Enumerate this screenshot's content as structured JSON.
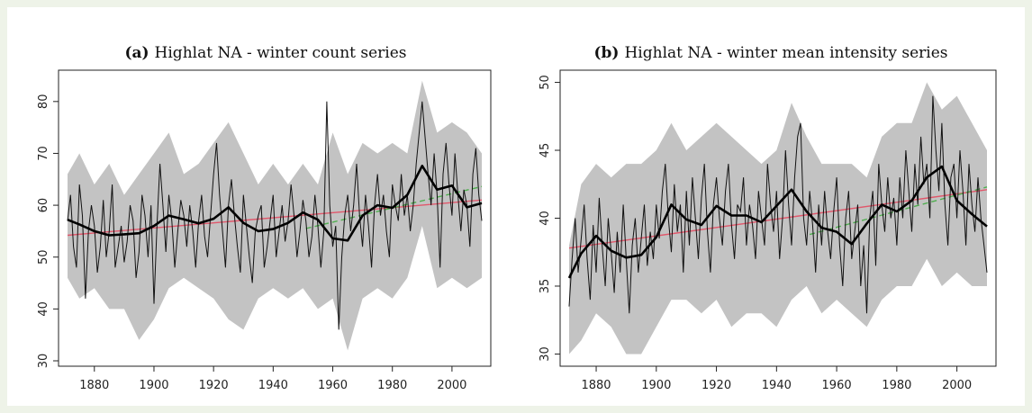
{
  "chart_data": [
    {
      "type": "line",
      "panel": "(a)",
      "title": "Highlat NA - winter count series",
      "xlim": [
        1871,
        2010
      ],
      "ylim": [
        30,
        85
      ],
      "xticks": [
        1880,
        1900,
        1920,
        1940,
        1960,
        1980,
        2000
      ],
      "yticks": [
        30,
        40,
        50,
        60,
        70,
        80
      ],
      "series": [
        {
          "role": "annual",
          "color": "#111111",
          "x": [
            1871,
            1872,
            1873,
            1874,
            1875,
            1876,
            1877,
            1878,
            1879,
            1880,
            1881,
            1882,
            1883,
            1884,
            1885,
            1886,
            1887,
            1888,
            1889,
            1890,
            1891,
            1892,
            1893,
            1894,
            1895,
            1896,
            1897,
            1898,
            1899,
            1900,
            1901,
            1902,
            1903,
            1904,
            1905,
            1906,
            1907,
            1908,
            1909,
            1910,
            1911,
            1912,
            1913,
            1914,
            1915,
            1916,
            1917,
            1918,
            1919,
            1920,
            1921,
            1922,
            1923,
            1924,
            1925,
            1926,
            1927,
            1928,
            1929,
            1930,
            1931,
            1932,
            1933,
            1934,
            1935,
            1936,
            1937,
            1938,
            1939,
            1940,
            1941,
            1942,
            1943,
            1944,
            1945,
            1946,
            1947,
            1948,
            1949,
            1950,
            1951,
            1952,
            1953,
            1954,
            1955,
            1956,
            1957,
            1958,
            1959,
            1960,
            1961,
            1962,
            1963,
            1964,
            1965,
            1966,
            1967,
            1968,
            1969,
            1970,
            1971,
            1972,
            1973,
            1974,
            1975,
            1976,
            1977,
            1978,
            1979,
            1980,
            1981,
            1982,
            1983,
            1984,
            1985,
            1986,
            1987,
            1988,
            1989,
            1990,
            1991,
            1992,
            1993,
            1994,
            1995,
            1996,
            1997,
            1998,
            1999,
            2000,
            2001,
            2002,
            2003,
            2004,
            2005,
            2006,
            2007,
            2008,
            2009,
            2010
          ],
          "values": [
            57,
            62,
            52,
            48,
            64,
            58,
            42,
            55,
            60,
            56,
            47,
            52,
            61,
            50,
            55,
            64,
            48,
            52,
            56,
            49,
            53,
            60,
            57,
            46,
            51,
            62,
            58,
            50,
            60,
            41,
            56,
            68,
            60,
            51,
            62,
            57,
            48,
            55,
            61,
            58,
            52,
            60,
            55,
            48,
            57,
            62,
            54,
            50,
            58,
            66,
            72,
            62,
            55,
            48,
            60,
            65,
            58,
            52,
            47,
            62,
            56,
            50,
            45,
            55,
            58,
            60,
            48,
            52,
            57,
            62,
            50,
            55,
            60,
            53,
            57,
            64,
            58,
            50,
            55,
            61,
            57,
            50,
            54,
            62,
            56,
            48,
            55,
            80,
            60,
            52,
            56,
            36,
            50,
            58,
            62,
            55,
            60,
            68,
            58,
            52,
            62,
            56,
            48,
            60,
            66,
            58,
            62,
            55,
            50,
            64,
            60,
            57,
            66,
            58,
            62,
            55,
            60,
            68,
            74,
            80,
            73,
            66,
            60,
            70,
            62,
            48,
            66,
            72,
            64,
            58,
            70,
            62,
            55,
            63,
            60,
            52,
            66,
            71,
            62,
            57
          ]
        },
        {
          "role": "band",
          "color": "#b9b9b9",
          "x": [
            1871,
            1875,
            1880,
            1885,
            1890,
            1895,
            1900,
            1905,
            1910,
            1915,
            1920,
            1925,
            1930,
            1935,
            1940,
            1945,
            1950,
            1955,
            1960,
            1965,
            1970,
            1975,
            1980,
            1985,
            1990,
            1995,
            2000,
            2005,
            2010
          ],
          "upper": [
            66,
            70,
            64,
            68,
            62,
            66,
            70,
            74,
            66,
            68,
            72,
            76,
            70,
            64,
            68,
            64,
            68,
            64,
            74,
            66,
            72,
            70,
            72,
            70,
            84,
            74,
            76,
            74,
            70
          ],
          "lower": [
            46,
            42,
            44,
            40,
            40,
            34,
            38,
            44,
            46,
            44,
            42,
            38,
            36,
            42,
            44,
            42,
            44,
            40,
            42,
            32,
            42,
            44,
            42,
            46,
            56,
            44,
            46,
            44,
            46
          ]
        },
        {
          "role": "smoothed",
          "color": "#000000",
          "x": [
            1871,
            1875,
            1880,
            1885,
            1890,
            1895,
            1900,
            1905,
            1910,
            1915,
            1920,
            1925,
            1930,
            1935,
            1940,
            1945,
            1950,
            1955,
            1960,
            1965,
            1970,
            1975,
            1980,
            1985,
            1990,
            1995,
            2000,
            2005,
            2010
          ],
          "values": [
            57.2,
            56.3,
            55,
            54.2,
            54.4,
            54.6,
            56,
            58,
            57.3,
            56.5,
            57.4,
            59.6,
            56.6,
            55,
            55.4,
            56.6,
            58.6,
            57.2,
            53.6,
            53.2,
            58,
            60,
            59.5,
            62,
            67.6,
            63,
            63.8,
            59.6,
            60.4
          ]
        },
        {
          "role": "trend-full",
          "color": "#e0576b",
          "x": [
            1871,
            2010
          ],
          "values": [
            54.2,
            61
          ]
        },
        {
          "role": "trend-recent",
          "color": "#4fae4f",
          "x": [
            1951,
            2010
          ],
          "values": [
            55.5,
            63.6
          ]
        }
      ]
    },
    {
      "type": "line",
      "panel": "(b)",
      "title": "Highlat NA - winter mean intensity series",
      "xlim": [
        1871,
        2010
      ],
      "ylim": [
        29.5,
        50.5
      ],
      "xticks": [
        1880,
        1900,
        1920,
        1940,
        1960,
        1980,
        2000
      ],
      "yticks": [
        30,
        35,
        40,
        45,
        50
      ],
      "series": [
        {
          "role": "annual",
          "color": "#111111",
          "x": [
            1871,
            1872,
            1873,
            1874,
            1875,
            1876,
            1877,
            1878,
            1879,
            1880,
            1881,
            1882,
            1883,
            1884,
            1885,
            1886,
            1887,
            1888,
            1889,
            1890,
            1891,
            1892,
            1893,
            1894,
            1895,
            1896,
            1897,
            1898,
            1899,
            1900,
            1901,
            1902,
            1903,
            1904,
            1905,
            1906,
            1907,
            1908,
            1909,
            1910,
            1911,
            1912,
            1913,
            1914,
            1915,
            1916,
            1917,
            1918,
            1919,
            1920,
            1921,
            1922,
            1923,
            1924,
            1925,
            1926,
            1927,
            1928,
            1929,
            1930,
            1931,
            1932,
            1933,
            1934,
            1935,
            1936,
            1937,
            1938,
            1939,
            1940,
            1941,
            1942,
            1943,
            1944,
            1945,
            1946,
            1947,
            1948,
            1949,
            1950,
            1951,
            1952,
            1953,
            1954,
            1955,
            1956,
            1957,
            1958,
            1959,
            1960,
            1961,
            1962,
            1963,
            1964,
            1965,
            1966,
            1967,
            1968,
            1969,
            1970,
            1971,
            1972,
            1973,
            1974,
            1975,
            1976,
            1977,
            1978,
            1979,
            1980,
            1981,
            1982,
            1983,
            1984,
            1985,
            1986,
            1987,
            1988,
            1989,
            1990,
            1991,
            1992,
            1993,
            1994,
            1995,
            1996,
            1997,
            1998,
            1999,
            2000,
            2001,
            2002,
            2003,
            2004,
            2005,
            2006,
            2007,
            2008,
            2009,
            2010
          ],
          "values": [
            33.5,
            37,
            40,
            36,
            38.5,
            41,
            37,
            34,
            39.5,
            36,
            41.5,
            38,
            35,
            40,
            37.5,
            34.5,
            39,
            36,
            41,
            37,
            33,
            38,
            40,
            36,
            38.5,
            41,
            36.5,
            39,
            37,
            41,
            38.5,
            42,
            44,
            40,
            37.5,
            42.5,
            39,
            41,
            36,
            42,
            38,
            43,
            40,
            37,
            41.5,
            44,
            39,
            36,
            41,
            43,
            40,
            38,
            42,
            44,
            39.5,
            37,
            41,
            40.5,
            43,
            38,
            41,
            39.5,
            37,
            42,
            40,
            38,
            44,
            41,
            39,
            42,
            37,
            40,
            45,
            41,
            38,
            43,
            46,
            47,
            40,
            38,
            42,
            39.5,
            36,
            41,
            38,
            42,
            39,
            37,
            40.5,
            43,
            38,
            35,
            40,
            42,
            37,
            39,
            41,
            35,
            38,
            33,
            40,
            42,
            36.5,
            44,
            41,
            39,
            43,
            40,
            41.5,
            38,
            43,
            40,
            45,
            42,
            39,
            44,
            41,
            46,
            42.5,
            44,
            40,
            49,
            45,
            42,
            47,
            41,
            38,
            43,
            44,
            40,
            45,
            42,
            38,
            44,
            41,
            39,
            43,
            40,
            38,
            36
          ]
        },
        {
          "role": "band",
          "color": "#b9b9b9",
          "x": [
            1871,
            1875,
            1880,
            1885,
            1890,
            1895,
            1900,
            1905,
            1910,
            1915,
            1920,
            1925,
            1930,
            1935,
            1940,
            1945,
            1950,
            1955,
            1960,
            1965,
            1970,
            1975,
            1980,
            1985,
            1990,
            1995,
            2000,
            2005,
            2010
          ],
          "upper": [
            38,
            42.5,
            44,
            43,
            44,
            44,
            45,
            47,
            45,
            46,
            47,
            46,
            45,
            44,
            45,
            48.5,
            46,
            44,
            44,
            44,
            43,
            46,
            47,
            47,
            50,
            48,
            49,
            47,
            45
          ],
          "lower": [
            30,
            31,
            33,
            32,
            30,
            30,
            32,
            34,
            34,
            33,
            34,
            32,
            33,
            33,
            32,
            34,
            35,
            33,
            34,
            33,
            32,
            34,
            35,
            35,
            37,
            35,
            36,
            35,
            35
          ]
        },
        {
          "role": "smoothed",
          "color": "#000000",
          "x": [
            1871,
            1875,
            1880,
            1885,
            1890,
            1895,
            1900,
            1905,
            1910,
            1915,
            1920,
            1925,
            1930,
            1935,
            1940,
            1945,
            1950,
            1955,
            1960,
            1965,
            1970,
            1975,
            1980,
            1985,
            1990,
            1995,
            2000,
            2005,
            2010
          ],
          "values": [
            35.6,
            37.4,
            38.7,
            37.6,
            37.1,
            37.3,
            38.6,
            41,
            39.9,
            39.5,
            40.9,
            40.2,
            40.2,
            39.7,
            40.9,
            42.1,
            40.5,
            39.3,
            39,
            38.1,
            39.6,
            41,
            40.5,
            41.3,
            43,
            43.8,
            41.3,
            40.3,
            39.4
          ]
        },
        {
          "role": "trend-full",
          "color": "#e0576b",
          "x": [
            1871,
            2010
          ],
          "values": [
            37.8,
            42.1
          ]
        },
        {
          "role": "trend-recent",
          "color": "#4fae4f",
          "x": [
            1951,
            2010
          ],
          "values": [
            38.8,
            42.3
          ]
        }
      ]
    }
  ]
}
